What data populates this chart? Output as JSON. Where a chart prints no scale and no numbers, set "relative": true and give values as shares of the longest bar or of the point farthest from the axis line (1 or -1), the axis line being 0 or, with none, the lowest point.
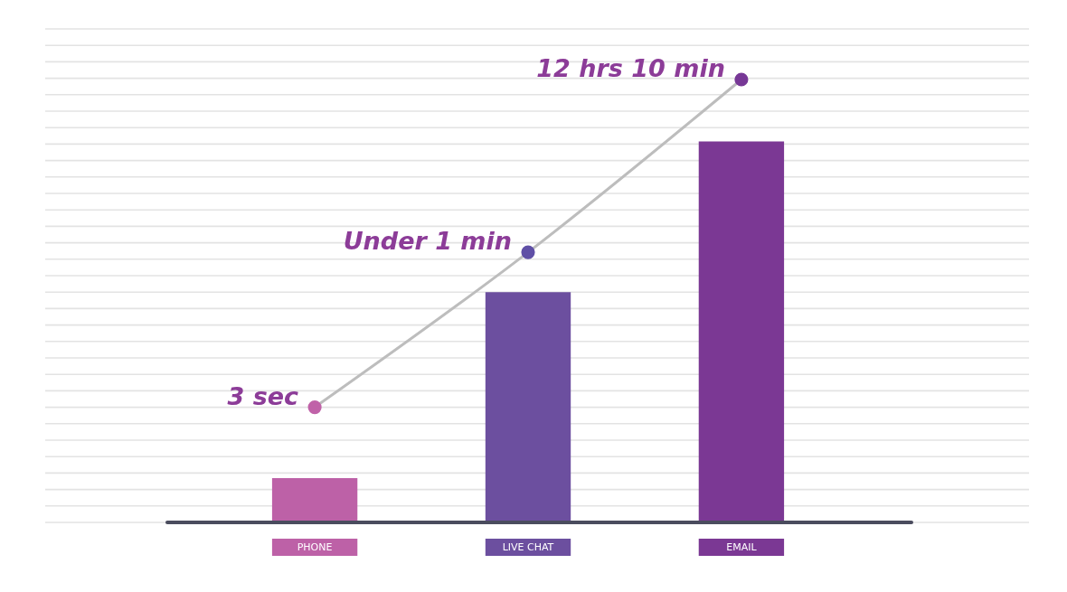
{
  "chart_data": {
    "type": "bar",
    "relative": true,
    "categories": [
      "PHONE",
      "LIVE CHAT",
      "EMAIL"
    ],
    "series": [
      {
        "colors": [
          "#bd61a7",
          "#6c4f9f",
          "#7b3894"
        ],
        "values": [
          0.1,
          0.52,
          0.86
        ]
      },
      {
        "type": "line",
        "color": "#bdbdbd",
        "colors": [
          "#c062a8",
          "#5f4fa6",
          "#773896"
        ],
        "marker": "circle",
        "values": [
          0.26,
          0.61,
          1
        ]
      }
    ],
    "annotations": [
      {
        "text": "3 sec",
        "x": "PHONE",
        "y": 0.26
      },
      {
        "text": "Under 1 min",
        "x": "LIVE CHAT",
        "y": 0.61
      },
      {
        "text": "12 hrs 10 min",
        "x": "EMAIL",
        "y": 1
      }
    ],
    "grid": "y",
    "legend": false
  }
}
